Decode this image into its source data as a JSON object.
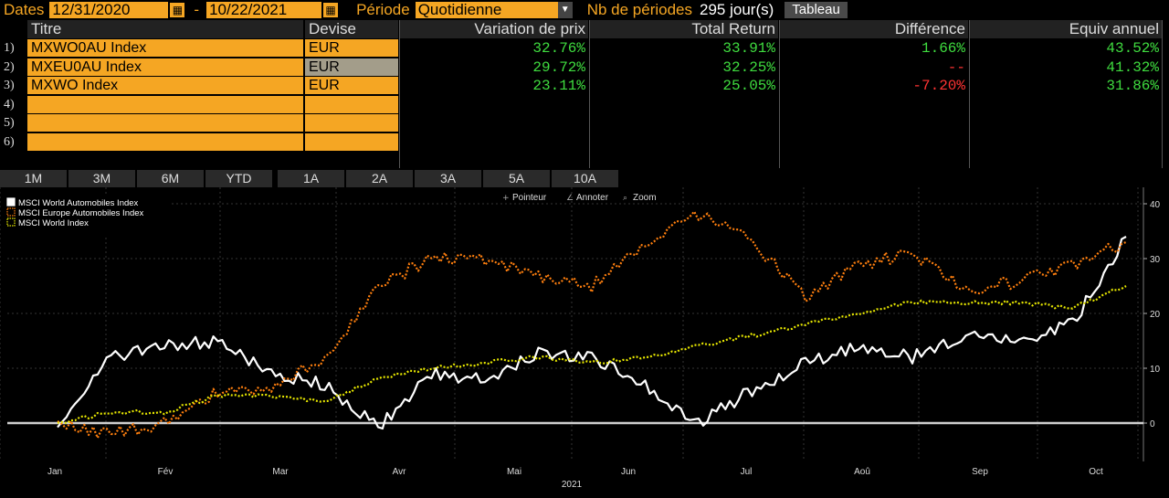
{
  "topbar": {
    "dates_label": "Dates",
    "start_date": "12/31/2020",
    "dash": "-",
    "end_date": "10/22/2021",
    "period_label": "Période",
    "period_value": "Quotidienne",
    "nb_label": "Nb de périodes",
    "nb_value": "295 jour(s)",
    "table_button": "Tableau"
  },
  "table": {
    "headers": [
      "Titre",
      "Devise",
      "Variation de prix",
      "Total Return",
      "Différence",
      "Equiv annuel"
    ],
    "rows": [
      {
        "n": "1)",
        "titre": "MXWO0AU Index",
        "devise": "EUR",
        "var": "32.76%",
        "tr": "33.91%",
        "diff": "1.66%",
        "diff_sign": "pos",
        "equiv": "43.52%"
      },
      {
        "n": "2)",
        "titre": "MXEU0AU Index",
        "devise": "EUR",
        "var": "29.72%",
        "tr": "32.25%",
        "diff": "--",
        "diff_sign": "neg",
        "equiv": "41.32%"
      },
      {
        "n": "3)",
        "titre": "MXWO Index",
        "devise": "EUR",
        "var": "23.11%",
        "tr": "25.05%",
        "diff": "-7.20%",
        "diff_sign": "neg",
        "equiv": "31.86%"
      },
      {
        "n": "4)",
        "titre": "",
        "devise": "",
        "var": "",
        "tr": "",
        "diff": "",
        "diff_sign": "",
        "equiv": ""
      },
      {
        "n": "5)",
        "titre": "",
        "devise": "",
        "var": "",
        "tr": "",
        "diff": "",
        "diff_sign": "",
        "equiv": ""
      },
      {
        "n": "6)",
        "titre": "",
        "devise": "",
        "var": "",
        "tr": "",
        "diff": "",
        "diff_sign": "",
        "equiv": ""
      }
    ]
  },
  "range_tabs": [
    "1M",
    "3M",
    "6M",
    "YTD",
    "1A",
    "2A",
    "3A",
    "5A",
    "10A"
  ],
  "chart_tools": {
    "pointer": "Pointeur",
    "annotate": "Annoter",
    "zoom": "Zoom"
  },
  "chart_data": {
    "type": "line",
    "title": "",
    "xlabel": "2021",
    "ylabel": "",
    "x_ticks": [
      "Jan",
      "Fév",
      "Mar",
      "Avr",
      "Mai",
      "Jun",
      "Jul",
      "Aoû",
      "Sep",
      "Oct"
    ],
    "ylim": [
      -7,
      43
    ],
    "y_ticks": [
      0,
      10,
      20,
      30,
      40
    ],
    "legend_position": "top-left",
    "series": [
      {
        "name": "MSCI World Automobiles Index",
        "color": "#ffffff",
        "style": "solid",
        "x": [
          0,
          0.5,
          1,
          1.5,
          2,
          2.5,
          3,
          3.5,
          4,
          4.5,
          5,
          5.5,
          6,
          6.5,
          7,
          7.5,
          8,
          8.5,
          9,
          9.5,
          10
        ],
        "values": [
          0,
          12,
          14,
          15,
          9,
          7,
          -1,
          9,
          8,
          13,
          12,
          7,
          0,
          6,
          11,
          14,
          12,
          16,
          15,
          18,
          34
        ]
      },
      {
        "name": "MSCI Europe Automobiles Index",
        "color": "#ff7f0e",
        "style": "dotted",
        "x": [
          0,
          0.5,
          1,
          1.5,
          2,
          2.5,
          3,
          3.5,
          4,
          4.5,
          5,
          5.5,
          6,
          6.5,
          7,
          7.5,
          8,
          8.5,
          9,
          9.5,
          10
        ],
        "values": [
          0,
          -2,
          0,
          6,
          6,
          12,
          25,
          30,
          30,
          27,
          25,
          33,
          38,
          33,
          23,
          29,
          31,
          24,
          26,
          29,
          33
        ]
      },
      {
        "name": "MSCI World Index",
        "color": "#e8e800",
        "style": "dotted",
        "x": [
          0,
          0.5,
          1,
          1.5,
          2,
          2.5,
          3,
          3.5,
          4,
          4.5,
          5,
          5.5,
          6,
          6.5,
          7,
          7.5,
          8,
          8.5,
          9,
          9.5,
          10
        ],
        "values": [
          0,
          2,
          2,
          5,
          5,
          4,
          8,
          10,
          11,
          12,
          11,
          12,
          14,
          16,
          18,
          20,
          22,
          22,
          22,
          21,
          25
        ]
      }
    ]
  }
}
